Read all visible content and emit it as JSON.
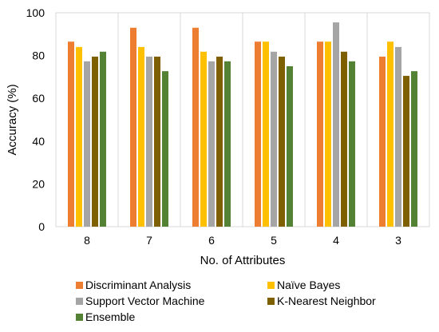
{
  "chart_data": {
    "type": "bar",
    "title": "",
    "xlabel": "No. of Attributes",
    "ylabel": "Accuracy (%)",
    "categories": [
      "8",
      "7",
      "6",
      "5",
      "4",
      "3"
    ],
    "ylim": [
      0,
      100
    ],
    "yticks": [
      0,
      20,
      40,
      60,
      80,
      100
    ],
    "grid": "vertical",
    "legend_position": "bottom",
    "series": [
      {
        "name": "Discriminant Analysis",
        "color": "#ED7D31",
        "values": [
          86.5,
          93,
          93,
          86.5,
          86.5,
          79.5
        ]
      },
      {
        "name": "Naïve Bayes",
        "color": "#FFC000",
        "values": [
          84,
          84,
          81.8,
          86.5,
          86.5,
          86.5
        ]
      },
      {
        "name": "Support Vector Machine",
        "color": "#A5A5A5",
        "values": [
          77.3,
          79.5,
          77.3,
          81.8,
          95.5,
          84
        ]
      },
      {
        "name": "K-Nearest Neighbor",
        "color": "#7F6000",
        "values": [
          79.5,
          79.5,
          79.5,
          79.5,
          81.8,
          70.5
        ]
      },
      {
        "name": "Ensemble",
        "color": "#548235",
        "values": [
          81.8,
          72.7,
          77.3,
          75,
          77.3,
          72.7
        ]
      }
    ]
  }
}
